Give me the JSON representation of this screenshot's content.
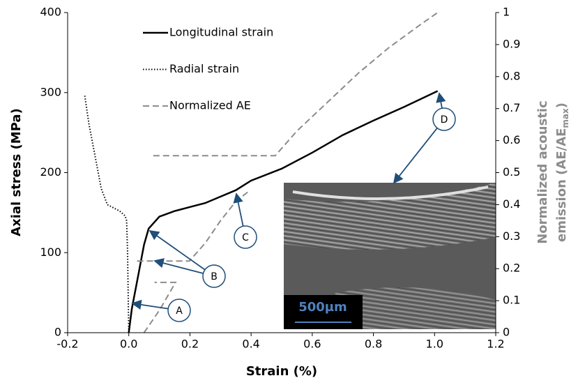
{
  "chart_data": {
    "type": "line",
    "x_label": "Strain (%)",
    "y_label": "Axial stress (MPa)",
    "y2_label": {
      "line1": "Normalized acoustic",
      "line2": "emission (AE/AE",
      "sub": "max",
      "end": ")"
    },
    "xlim": [
      -0.2,
      1.2
    ],
    "xticks": [
      -0.2,
      {
        "value": 0,
        "label": "0.0"
      },
      0.2,
      0.4,
      0.6,
      0.8,
      {
        "value": 1,
        "label": "1.0"
      },
      1.2
    ],
    "ylim": [
      0,
      400
    ],
    "yticks": [
      0,
      100,
      200,
      300,
      400
    ],
    "y2lim": [
      0,
      1
    ],
    "y2ticks": [
      0,
      0.1,
      0.2,
      0.3,
      0.4,
      0.5,
      0.6,
      0.7,
      0.8,
      0.9,
      1
    ],
    "legend": "upper left",
    "grid": false,
    "series": [
      {
        "name": "Longitudinal strain",
        "color": "#000000",
        "style": "solid",
        "x": [
          0,
          0.01,
          0.03,
          0.05,
          0.065,
          0.1,
          0.15,
          0.2,
          0.25,
          0.3,
          0.35,
          0.4,
          0.5,
          0.6,
          0.7,
          0.8,
          0.9,
          1.01
        ],
        "values": [
          0,
          30,
          70,
          110,
          130,
          145,
          152,
          157,
          162,
          170,
          178,
          190,
          205,
          225,
          247,
          265,
          282,
          302
        ]
      },
      {
        "name": "Radial strain",
        "color": "#000000",
        "style": "dotted",
        "x": [
          -0.144,
          -0.13,
          -0.11,
          -0.09,
          -0.07,
          -0.03,
          -0.012,
          -0.007,
          -0.004,
          -0.002,
          0
        ],
        "values": [
          296,
          260,
          220,
          180,
          160,
          152,
          146,
          140,
          100,
          50,
          0
        ]
      },
      {
        "name": "Normalized AE",
        "color": "#8c8c8c",
        "style": "dashed",
        "axis": "y2",
        "x": [
          0.05,
          0.1,
          0.153,
          0.084,
          0.06,
          0.027,
          0.198,
          0.25,
          0.3,
          0.35,
          0.39,
          0.3,
          0.08,
          0.479,
          0.55,
          0.65,
          0.75,
          0.85,
          0.95,
          1.01
        ],
        "values": [
          0,
          0.07,
          0.157,
          0.157,
          null,
          0.224,
          0.224,
          0.28,
          0.35,
          0.41,
          0.44,
          null,
          0.553,
          0.553,
          0.63,
          0.72,
          0.81,
          0.89,
          0.96,
          1
        ]
      }
    ],
    "annotations": [
      "A",
      "B",
      "C",
      "D"
    ],
    "inset_label": "500µm"
  }
}
